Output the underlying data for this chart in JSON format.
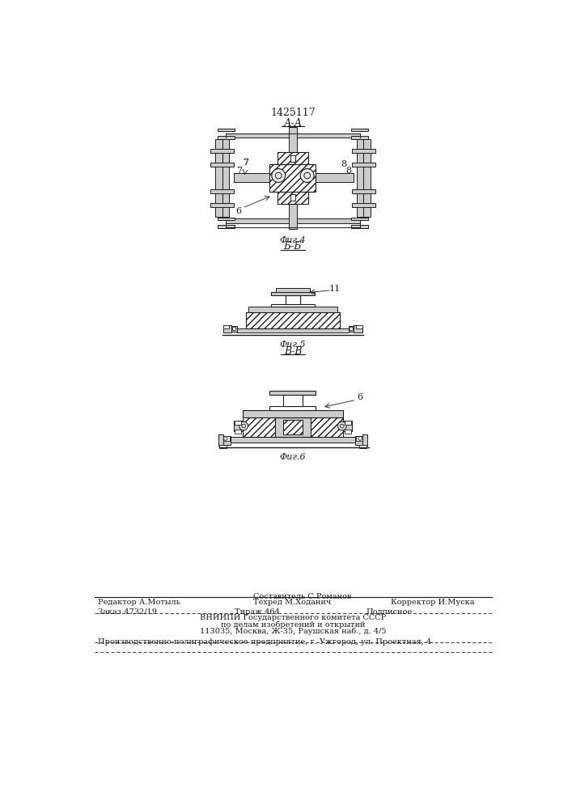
{
  "patent_number": "1425117",
  "bg_color": "#ffffff",
  "line_color": "#1a1a1a",
  "fig4_label": "А-А",
  "fig4_caption": "Фиг.4",
  "fig5_label": "Б-Б",
  "fig5_caption": "Фиг.5",
  "fig6_label": "В-В",
  "fig6_caption": "Фиг.6",
  "footer_line1_left": "Редактор А.Мотыль",
  "footer_line1_center_top": "Составитель С.Романов",
  "footer_line1_center_bot": "Техред М.Ходанич",
  "footer_line1_right": "Корректор И.Муска",
  "footer_line2_left": "Заказ 4732/19",
  "footer_line2_center1": "Тираж 464",
  "footer_line2_center2": "Подписное",
  "footer_line3": "ВНИИПИ Государственного комитета СССР",
  "footer_line4": "по делам изобретений и открытий",
  "footer_line5": "113035, Москва, Ж-35, Раушская наб., д. 4/5",
  "footer_bottom": "Производственно-полиграфическое предприятие, г. Ужгород, ул. Проектная, 4",
  "label_7": "7",
  "label_8": "8",
  "label_6a": "6",
  "label_11": "11",
  "label_6b": "6"
}
